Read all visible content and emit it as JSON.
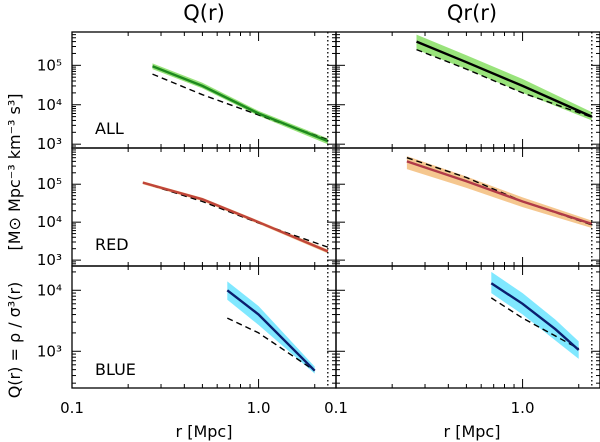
{
  "chart_data": {
    "type": "line",
    "xscale": "log",
    "yscale": "log",
    "xlim": [
      0.1,
      2.6
    ],
    "xticks": [
      0.1,
      1.0
    ],
    "xtick_labels": [
      "0.1",
      "1.0"
    ],
    "xlabel": "r [Mpc]",
    "ylabel": "[M⊙ Mpc⁻³ km⁻³ s³]",
    "lower_ylabel": "Q(r) = ρ / σ³(r)",
    "r_limit": 2.35,
    "columns": [
      {
        "title": "Q(r)"
      },
      {
        "title": "Qr(r)"
      }
    ],
    "rows": [
      {
        "label": "ALL",
        "ylim": [
          800,
          700000
        ],
        "yticks": [
          1000,
          10000,
          100000
        ],
        "ytick_labels": [
          "10³",
          "10⁴",
          "10⁵"
        ]
      },
      {
        "label": "RED",
        "ylim": [
          700,
          900000
        ],
        "yticks": [
          1000,
          10000,
          100000
        ],
        "ytick_labels": [
          "10³",
          "10⁴",
          "10⁵"
        ]
      },
      {
        "label": "BLUE",
        "ylim": [
          250,
          25000
        ],
        "yticks": [
          1000,
          10000
        ],
        "ytick_labels": [
          "10³",
          "10⁴"
        ]
      }
    ],
    "panels": [
      {
        "row": 0,
        "col": 0,
        "color": "#1e8a1e",
        "band": "#7fdc5a",
        "band_opacity": 0.8,
        "x": [
          0.27,
          0.5,
          1.0,
          2.35
        ],
        "y": [
          95000,
          30000,
          6000,
          1200
        ],
        "lo": [
          80000,
          26000,
          5200,
          1000
        ],
        "hi": [
          112000,
          36000,
          7000,
          1400
        ],
        "ref_x": [
          0.27,
          0.5,
          1.0,
          2.35
        ],
        "ref_y": [
          60000,
          18000,
          5500,
          1300
        ]
      },
      {
        "row": 0,
        "col": 1,
        "color": "#000000",
        "band": "#7fdc5a",
        "band_opacity": 0.8,
        "x": [
          0.27,
          0.5,
          1.0,
          2.35
        ],
        "y": [
          400000,
          120000,
          30000,
          5000
        ],
        "lo": [
          250000,
          80000,
          20000,
          4000
        ],
        "hi": [
          600000,
          180000,
          45000,
          6500
        ],
        "ref_x": [
          0.27,
          0.5,
          1.0,
          2.35
        ],
        "ref_y": [
          250000,
          80000,
          20000,
          4800
        ]
      },
      {
        "row": 1,
        "col": 0,
        "color": "#c0453a",
        "band": "#f2b46a",
        "band_opacity": 0.75,
        "x": [
          0.24,
          0.5,
          1.0,
          2.35
        ],
        "y": [
          110000,
          40000,
          10000,
          1700
        ],
        "lo": [
          100000,
          36000,
          9000,
          1500
        ],
        "hi": [
          120000,
          44000,
          11000,
          1900
        ],
        "ref_x": [
          0.24,
          0.5,
          1.0,
          2.35
        ],
        "ref_y": [
          110000,
          35000,
          9500,
          2200
        ]
      },
      {
        "row": 1,
        "col": 1,
        "color": "#b03a48",
        "band": "#f2b46a",
        "band_opacity": 0.75,
        "x": [
          0.24,
          0.5,
          1.0,
          2.35
        ],
        "y": [
          400000,
          120000,
          35000,
          9000
        ],
        "lo": [
          250000,
          80000,
          25000,
          7000
        ],
        "hi": [
          550000,
          160000,
          45000,
          11000
        ],
        "ref_x": [
          0.24,
          0.5,
          1.0,
          2.35
        ],
        "ref_y": [
          500000,
          150000,
          35000,
          8500
        ]
      },
      {
        "row": 2,
        "col": 0,
        "color": "#0b1e6e",
        "band": "#55e0ff",
        "band_opacity": 0.75,
        "x": [
          0.68,
          1.0,
          2.0
        ],
        "y": [
          10000,
          4000,
          480
        ],
        "lo": [
          7000,
          2700,
          430
        ],
        "hi": [
          14000,
          5500,
          560
        ],
        "ref_x": [
          0.68,
          1.0,
          2.0
        ],
        "ref_y": [
          3500,
          2000,
          480
        ]
      },
      {
        "row": 2,
        "col": 1,
        "color": "#0b1e6e",
        "band": "#55e0ff",
        "band_opacity": 0.75,
        "x": [
          0.68,
          1.0,
          1.5,
          2.0
        ],
        "y": [
          13000,
          6000,
          2300,
          1050
        ],
        "lo": [
          9000,
          4000,
          1500,
          750
        ],
        "hi": [
          20000,
          9000,
          3300,
          1450
        ],
        "ref_x": [
          0.68,
          1.0,
          2.0
        ],
        "ref_y": [
          7500,
          3500,
          1100
        ]
      }
    ]
  }
}
